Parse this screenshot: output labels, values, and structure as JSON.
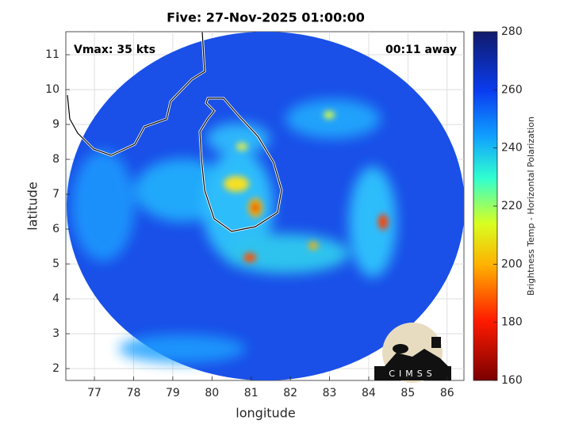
{
  "chart_data": {
    "type": "map",
    "title": "Five: 27-Nov-2025 01:00:00",
    "annotations": {
      "left": "Vmax: 35 kts",
      "right": "00:11 away"
    },
    "xlabel": "longitude",
    "ylabel": "latitude",
    "xlim": [
      76.27,
      86.43
    ],
    "ylim": [
      1.66,
      11.66
    ],
    "xticks": [
      77,
      78,
      79,
      80,
      81,
      82,
      83,
      84,
      85,
      86
    ],
    "yticks": [
      2,
      3,
      4,
      5,
      6,
      7,
      8,
      9,
      10,
      11
    ],
    "grid": true,
    "colorbar": {
      "label": "Brightness Temp - Horizontal Polarization",
      "clim": [
        160,
        280
      ],
      "ticks": [
        160,
        180,
        200,
        220,
        240,
        260,
        280
      ]
    },
    "logo": "CIMSS"
  }
}
